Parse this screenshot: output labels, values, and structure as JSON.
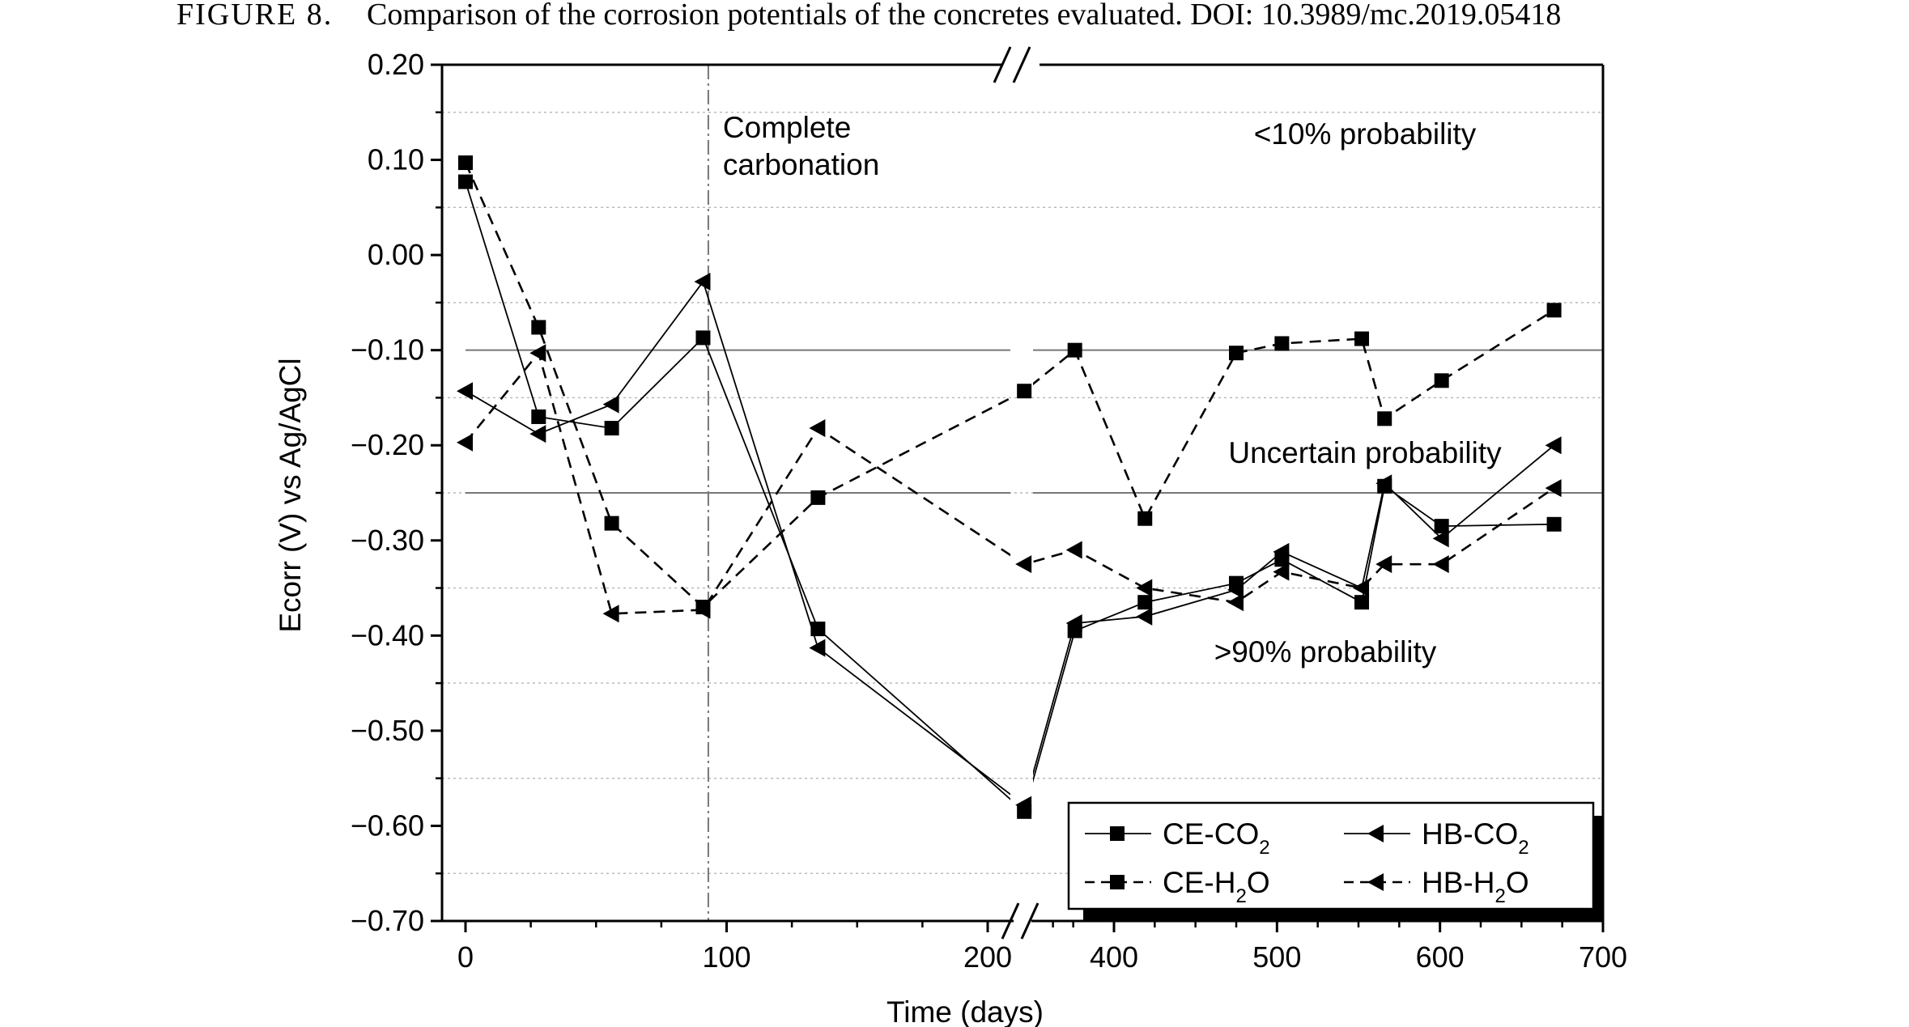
{
  "caption": {
    "label": "FIGURE 8.",
    "text": "Comparison of the corrosion potentials of the concretes evaluated. DOI: 10.3989/mc.2019.05418"
  },
  "chart_data": {
    "type": "line",
    "xlabel": "Time (days)",
    "ylabel": "Ecorr (V) vs Ag/AgCl",
    "ylim": [
      -0.7,
      0.2
    ],
    "x_axis_break": {
      "left_segment": [
        0,
        230
      ],
      "right_segment": [
        360,
        700
      ]
    },
    "x_ticks": [
      0,
      100,
      200,
      400,
      500,
      600,
      700
    ],
    "y_ticks": [
      0.2,
      0.1,
      0.0,
      -0.1,
      -0.2,
      -0.3,
      -0.4,
      -0.5,
      -0.6,
      -0.7
    ],
    "y_tick_labels": [
      "0.20",
      "0.10",
      "0.00",
      "−0.10",
      "−0.20",
      "−0.30",
      "−0.40",
      "−0.50",
      "−0.60",
      "−0.70"
    ],
    "dotted_gridlines_y": [
      0.15,
      0.05,
      -0.05,
      -0.15,
      -0.25,
      -0.35,
      -0.45,
      -0.55,
      -0.65
    ],
    "threshold_lines_y": [
      -0.1,
      -0.25
    ],
    "vertical_marker": {
      "x": 93,
      "label_line1": "Complete",
      "label_line2": "carbonation"
    },
    "zone_labels": [
      {
        "text": "<10% probability",
        "x": 495,
        "y": 0.13
      },
      {
        "text": "Uncertain probability",
        "x": 495,
        "y": -0.205
      },
      {
        "text": ">90% probability",
        "x": 495,
        "y": -0.415
      }
    ],
    "series": [
      {
        "name": "CE-CO",
        "sub": "2",
        "suffix": "",
        "marker": "square",
        "line": "solid",
        "x": [
          0,
          28,
          56,
          91,
          135,
          214,
          376,
          419,
          475,
          503,
          552,
          566,
          601,
          670
        ],
        "y": [
          0.077,
          -0.17,
          -0.182,
          -0.087,
          -0.393,
          -0.585,
          -0.395,
          -0.365,
          -0.345,
          -0.32,
          -0.365,
          -0.243,
          -0.285,
          -0.283
        ]
      },
      {
        "name": "HB-CO",
        "sub": "2",
        "suffix": "",
        "marker": "triangle-left",
        "line": "solid",
        "x": [
          0,
          28,
          56,
          91,
          135,
          214,
          376,
          419,
          475,
          503,
          552,
          566,
          601,
          670
        ],
        "y": [
          -0.143,
          -0.188,
          -0.157,
          -0.028,
          -0.413,
          -0.578,
          -0.387,
          -0.38,
          -0.352,
          -0.312,
          -0.35,
          -0.24,
          -0.298,
          -0.2
        ]
      },
      {
        "name": "CE-H",
        "sub": "2",
        "suffix": "O",
        "marker": "square",
        "line": "dashed",
        "x": [
          0,
          28,
          56,
          91,
          135,
          214,
          376,
          419,
          475,
          503,
          552,
          566,
          601,
          670
        ],
        "y": [
          0.097,
          -0.076,
          -0.282,
          -0.37,
          -0.255,
          -0.143,
          -0.1,
          -0.277,
          -0.103,
          -0.093,
          -0.088,
          -0.172,
          -0.132,
          -0.058
        ]
      },
      {
        "name": "HB-H",
        "sub": "2",
        "suffix": "O",
        "marker": "triangle-left",
        "line": "dashed",
        "x": [
          0,
          28,
          56,
          91,
          135,
          214,
          376,
          419,
          475,
          503,
          552,
          566,
          601,
          670
        ],
        "y": [
          -0.197,
          -0.103,
          -0.377,
          -0.373,
          -0.182,
          -0.325,
          -0.31,
          -0.35,
          -0.365,
          -0.333,
          -0.35,
          -0.325,
          -0.325,
          -0.245
        ]
      }
    ],
    "legend_position": "bottom-right"
  }
}
